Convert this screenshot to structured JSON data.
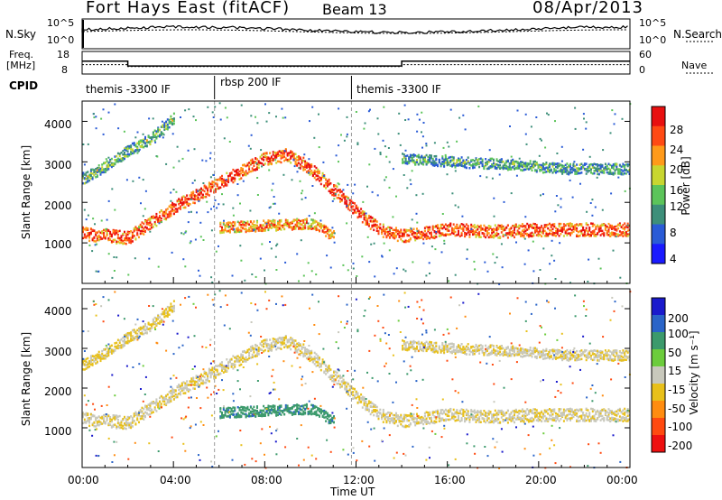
{
  "header": {
    "station": "Fort Hays East (fitACF)",
    "beam": "Beam 13",
    "date": "08/Apr/2013"
  },
  "noise_panel": {
    "left_label": "N.Sky",
    "right_label": "N.Search",
    "left_ticks": [
      "10^5",
      "10^0"
    ],
    "right_ticks": [
      "10^5",
      "10^0"
    ]
  },
  "freq_panel": {
    "left_label_line1": "Freq.",
    "left_label_line2": "[MHz]",
    "left_ticks": [
      "18",
      "8"
    ],
    "right_ticks": [
      "60",
      "0"
    ],
    "right_label": "Nave",
    "freq_steps": [
      {
        "t0": 0,
        "t1": 2,
        "mhz": 14
      },
      {
        "t0": 2,
        "t1": 14,
        "mhz": 11
      },
      {
        "t0": 14,
        "t1": 24,
        "mhz": 14
      }
    ],
    "nave_steps": [
      {
        "t0": 0,
        "t1": 2,
        "nave": 25
      },
      {
        "t0": 2,
        "t1": 14,
        "nave": 20
      },
      {
        "t0": 14,
        "t1": 24,
        "nave": 25
      }
    ]
  },
  "cpid": {
    "label": "CPID",
    "segments": [
      {
        "name": "themis -3300 IF",
        "t0": 0,
        "t1": 5.8
      },
      {
        "name": "rbsp 200 IF",
        "t0": 5.8,
        "t1": 11.8
      },
      {
        "name": "themis -3300 IF",
        "t0": 11.8,
        "t1": 24
      }
    ]
  },
  "power_panel": {
    "ylabel": "Slant Range [km]",
    "yticks": [
      "1000",
      "2000",
      "3000",
      "4000"
    ],
    "colorbar_label": "Power [dB]",
    "colorbar_ticks": [
      "4",
      "8",
      "12",
      "16",
      "20",
      "24",
      "28"
    ],
    "colorbar_colors": [
      "#1a1aff",
      "#2a5bd6",
      "#3d8f7a",
      "#5cc45a",
      "#c8d630",
      "#ff9a1a",
      "#ff4a14",
      "#e81010"
    ]
  },
  "velocity_panel": {
    "ylabel": "Slant Range [km]",
    "yticks": [
      "1000",
      "2000",
      "3000",
      "4000"
    ],
    "colorbar_label": "Velocity [m s⁻¹]",
    "colorbar_ticks": [
      "200",
      "100",
      "50",
      "15",
      "-15",
      "-50",
      "-100",
      "-200"
    ],
    "colorbar_colors": [
      "#1a1acc",
      "#2a64c8",
      "#3c9a6c",
      "#6ccc3c",
      "#c8c8bc",
      "#e8c01a",
      "#ff8c10",
      "#ff4a10",
      "#ee1010"
    ]
  },
  "x_axis": {
    "label": "Time UT",
    "ticks": [
      "00:00",
      "04:00",
      "08:00",
      "12:00",
      "16:00",
      "20:00",
      "00:00"
    ]
  },
  "chart_data": {
    "type": "heatmap",
    "title": "Fort Hays East (fitACF)  Beam 13  08/Apr/2013",
    "xlabel": "Time UT",
    "ylabel": "Slant Range [km]",
    "xlim_hours": [
      0,
      24
    ],
    "ylim_km": [
      0,
      4500
    ],
    "grid": false,
    "scatter_bands": [
      {
        "name": "main F-region band",
        "points_hr_km": [
          [
            0,
            1250
          ],
          [
            2,
            1150
          ],
          [
            4,
            1900
          ],
          [
            6,
            2500
          ],
          [
            8,
            3100
          ],
          [
            9,
            3200
          ],
          [
            10,
            2850
          ],
          [
            12,
            1800
          ],
          [
            13,
            1350
          ],
          [
            14,
            1200
          ],
          [
            16,
            1350
          ],
          [
            18,
            1300
          ],
          [
            20,
            1350
          ],
          [
            24,
            1350
          ]
        ],
        "power_db": 26,
        "velocity": -10
      },
      {
        "name": "midday near band",
        "points_hr_km": [
          [
            6,
            1400
          ],
          [
            8,
            1450
          ],
          [
            10,
            1500
          ],
          [
            11,
            1200
          ]
        ],
        "power_db": 22,
        "velocity": 60
      },
      {
        "name": "far band afternoon",
        "points_hr_km": [
          [
            14,
            3100
          ],
          [
            17,
            3000
          ],
          [
            19,
            2950
          ],
          [
            21,
            2850
          ],
          [
            24,
            2850
          ]
        ],
        "power_db": 10,
        "velocity": -10
      },
      {
        "name": "morning rising band",
        "points_hr_km": [
          [
            0,
            2600
          ],
          [
            1,
            2900
          ],
          [
            2,
            3300
          ],
          [
            3,
            3600
          ],
          [
            4,
            4100
          ]
        ],
        "power_db": 12,
        "velocity": -20
      }
    ]
  }
}
